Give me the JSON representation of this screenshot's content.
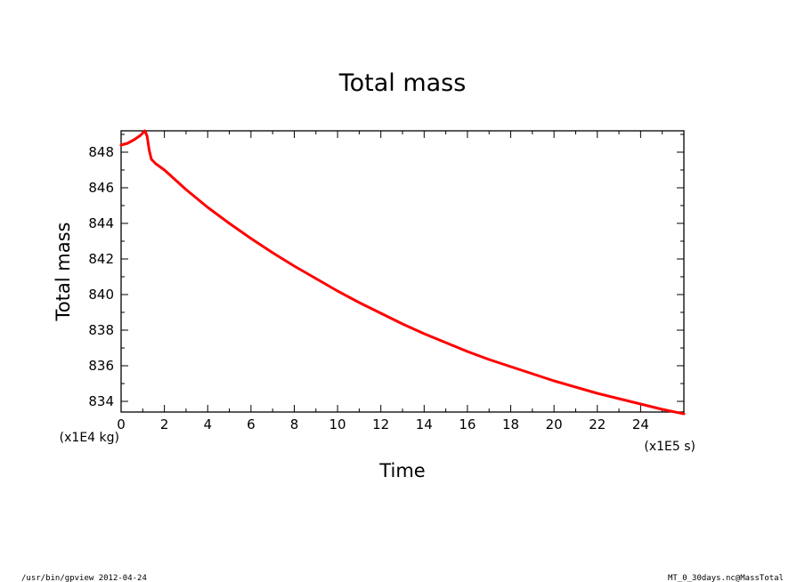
{
  "chart_data": {
    "type": "line",
    "title": "Total mass",
    "xlabel": "Time",
    "ylabel": "Total mass",
    "x_scale_note": "(x1E5 s)",
    "y_scale_note": "(x1E4 kg)",
    "xlim": [
      0,
      26
    ],
    "ylim": [
      833.4,
      849.2
    ],
    "x_ticks": [
      0,
      2,
      4,
      6,
      8,
      10,
      12,
      14,
      16,
      18,
      20,
      22,
      24
    ],
    "y_ticks": [
      834,
      836,
      838,
      840,
      842,
      844,
      846,
      848
    ],
    "grid": false,
    "series": [
      {
        "color": "#ff0000",
        "x": [
          0,
          0.3,
          0.6,
          0.9,
          1.1,
          1.2,
          1.3,
          1.4,
          1.6,
          2,
          3,
          4,
          5,
          6,
          7,
          8,
          9,
          10,
          11,
          12,
          13,
          14,
          15,
          16,
          17,
          18,
          19,
          20,
          21,
          22,
          23,
          24,
          25,
          26
        ],
        "y": [
          848.4,
          848.5,
          848.7,
          848.95,
          849.2,
          848.9,
          848.1,
          847.6,
          847.35,
          847.0,
          845.9,
          844.9,
          844.0,
          843.15,
          842.35,
          841.6,
          840.9,
          840.2,
          839.55,
          838.95,
          838.35,
          837.8,
          837.3,
          836.8,
          836.35,
          835.95,
          835.55,
          835.15,
          834.8,
          834.45,
          834.15,
          833.85,
          833.55,
          833.3
        ]
      }
    ]
  },
  "footer": {
    "left": "/usr/bin/gpview   2012-04-24",
    "right": "MT_0_30days.nc@MassTotal"
  }
}
